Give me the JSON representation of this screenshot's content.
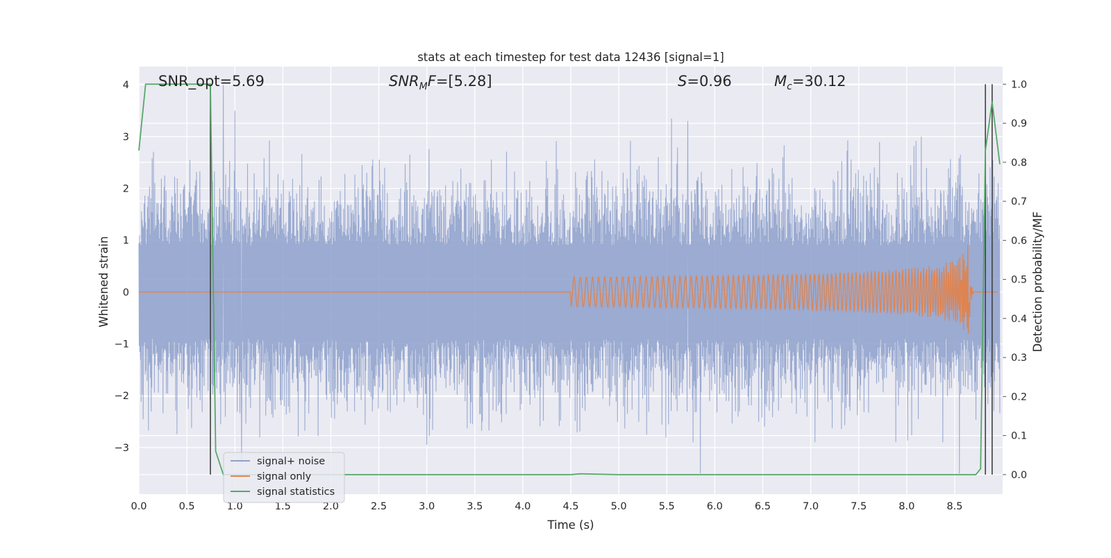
{
  "chart_data": {
    "type": "line",
    "title": "stats at each timestep for test data 12436 [signal=1]",
    "xlabel": "Time (s)",
    "ylabel": "Whitened strain",
    "ylabel_right": "Detection probability/MF",
    "xlim": [
      0.0,
      9.0
    ],
    "ylim": [
      -3.9,
      4.35
    ],
    "ylim_right": [
      -0.05,
      1.045
    ],
    "x_ticks": [
      "0.0",
      "0.5",
      "1.0",
      "1.5",
      "2.0",
      "2.5",
      "3.0",
      "3.5",
      "4.0",
      "4.5",
      "5.0",
      "5.5",
      "6.0",
      "6.5",
      "7.0",
      "7.5",
      "8.0",
      "8.5"
    ],
    "y_ticks": [
      "4",
      "3",
      "2",
      "1",
      "0",
      "−1",
      "−2",
      "−3"
    ],
    "y_right_ticks": [
      "1.0",
      "0.9",
      "0.8",
      "0.7",
      "0.6",
      "0.5",
      "0.4",
      "0.3",
      "0.2",
      "0.1",
      "0.0"
    ],
    "grid": true,
    "legend_position": "lower-left",
    "annotations": {
      "snr_opt": "SNR_opt=5.69",
      "snr_mf_main": "SNR",
      "snr_mf_sub": "M",
      "snr_mf_rest": "F=[5.28]",
      "s_italic": "S",
      "s_rest": "=0.96",
      "mc_italic": "M",
      "mc_sub": "c",
      "mc_rest": "=30.12"
    },
    "series": [
      {
        "name": "signal+ noise",
        "color": "#8da0cb",
        "description_axis": "left",
        "noise_envelope": {
          "typical_abs": 1.7,
          "max_high": 4.0,
          "min_low": -3.55
        },
        "spikes": [
          {
            "x": 0.88,
            "y": 4.0
          },
          {
            "x": 1.0,
            "y": 3.5
          },
          {
            "x": 5.55,
            "y": 3.35
          },
          {
            "x": 5.72,
            "y": 3.3
          },
          {
            "x": 5.85,
            "y": -3.5
          },
          {
            "x": 8.55,
            "y": -3.5
          },
          {
            "x": 1.07,
            "y": -3.3
          },
          {
            "x": 3.0,
            "y": -2.95
          }
        ]
      },
      {
        "name": "signal only",
        "color": "#dd8452",
        "description_axis": "left",
        "chirp": {
          "start_x": 4.5,
          "merger_x": 8.65,
          "peak_amplitude": 1.15
        }
      },
      {
        "name": "signal statistics",
        "color": "#55a868",
        "description_axis": "right",
        "x": [
          0.0,
          0.07,
          0.15,
          0.3,
          0.5,
          0.7,
          0.745,
          0.8,
          0.88,
          1.0,
          2.0,
          3.0,
          4.0,
          4.5,
          4.6,
          5.0,
          6.0,
          7.0,
          8.0,
          8.72,
          8.77,
          8.82,
          8.89,
          8.97
        ],
        "y": [
          0.83,
          1.0,
          1.0,
          1.0,
          1.0,
          1.0,
          1.0,
          0.06,
          0.0,
          0.0,
          0.0,
          0.0,
          0.0,
          0.0,
          0.002,
          0.0,
          0.0,
          0.0,
          0.0,
          0.0,
          0.015,
          0.83,
          0.955,
          0.795
        ]
      }
    ],
    "vertical_lines": [
      {
        "x": 0.745,
        "color": "#404040"
      },
      {
        "x": 8.82,
        "color": "#404040"
      },
      {
        "x": 8.89,
        "color": "#404040"
      }
    ]
  }
}
